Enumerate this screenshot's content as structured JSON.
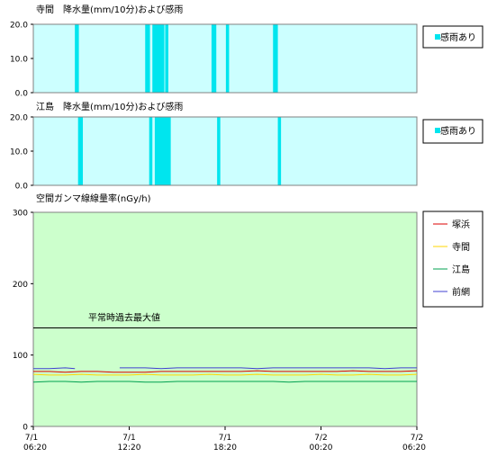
{
  "chart_data": [
    {
      "type": "bar",
      "title": "寺間　降水量(mm/10分)および感雨",
      "ylim": [
        0,
        20
      ],
      "yticks": [
        "0.0",
        "10.0",
        "20.0"
      ],
      "legend": {
        "label": "感雨あり",
        "placement": "right"
      },
      "colors": {
        "plot_bg": "#ccffff",
        "rain": "#00e5ee"
      },
      "rain_intervals_hours": [
        [
          2.6,
          2.85
        ],
        [
          7.0,
          7.3
        ],
        [
          7.45,
          8.2
        ],
        [
          8.25,
          8.45
        ],
        [
          11.15,
          11.45
        ],
        [
          12.05,
          12.25
        ],
        [
          15.0,
          15.3
        ]
      ]
    },
    {
      "type": "bar",
      "title": "江島　降水量(mm/10分)および感雨",
      "ylim": [
        0,
        20
      ],
      "yticks": [
        "0.0",
        "10.0",
        "20.0"
      ],
      "legend": {
        "label": "感雨あり",
        "placement": "right"
      },
      "colors": {
        "plot_bg": "#ccffff",
        "rain": "#00e5ee"
      },
      "rain_intervals_hours": [
        [
          2.8,
          3.1
        ],
        [
          7.25,
          7.45
        ],
        [
          7.6,
          8.6
        ],
        [
          11.5,
          11.7
        ],
        [
          15.3,
          15.5
        ]
      ]
    },
    {
      "type": "line",
      "title": "空間ガンマ線線量率(nGy/h)",
      "ylim": [
        0,
        300
      ],
      "yticks": [
        "0",
        "100",
        "200",
        "300"
      ],
      "x_ticks": [
        {
          "date": "7/1",
          "time": "06:20"
        },
        {
          "date": "7/1",
          "time": "12:20"
        },
        {
          "date": "7/1",
          "time": "18:20"
        },
        {
          "date": "7/2",
          "time": "00:20"
        },
        {
          "date": "7/2",
          "time": "06:20"
        }
      ],
      "x_range_hours": [
        0,
        24
      ],
      "reference_line": {
        "label": "平常時過去最大値",
        "value": 138
      },
      "colors": {
        "plot_bg": "#ccffcc"
      },
      "series": [
        {
          "name": "塚浜",
          "color": "#dd0000",
          "gaps_hours": [],
          "points": [
            [
              0,
              77
            ],
            [
              1,
              77
            ],
            [
              2,
              76
            ],
            [
              3,
              77
            ],
            [
              4,
              77
            ],
            [
              5,
              76
            ],
            [
              6,
              76
            ],
            [
              7,
              76
            ],
            [
              8,
              77
            ],
            [
              9,
              77
            ],
            [
              10,
              77
            ],
            [
              11,
              77
            ],
            [
              12,
              77
            ],
            [
              13,
              77
            ],
            [
              14,
              78
            ],
            [
              15,
              77
            ],
            [
              16,
              77
            ],
            [
              17,
              77
            ],
            [
              18,
              77
            ],
            [
              19,
              77
            ],
            [
              20,
              78
            ],
            [
              21,
              77
            ],
            [
              22,
              77
            ],
            [
              23,
              77
            ],
            [
              24,
              78
            ]
          ]
        },
        {
          "name": "寺間",
          "color": "#ffd700",
          "gaps_hours": [],
          "points": [
            [
              0,
              73
            ],
            [
              1,
              72
            ],
            [
              2,
              72
            ],
            [
              3,
              73
            ],
            [
              4,
              72
            ],
            [
              5,
              72
            ],
            [
              6,
              72
            ],
            [
              7,
              73
            ],
            [
              8,
              72
            ],
            [
              9,
              72
            ],
            [
              10,
              72
            ],
            [
              11,
              73
            ],
            [
              12,
              72
            ],
            [
              13,
              72
            ],
            [
              14,
              73
            ],
            [
              15,
              72
            ],
            [
              16,
              72
            ],
            [
              17,
              72
            ],
            [
              18,
              73
            ],
            [
              19,
              72
            ],
            [
              20,
              72
            ],
            [
              21,
              73
            ],
            [
              22,
              72
            ],
            [
              23,
              72
            ],
            [
              24,
              73
            ]
          ]
        },
        {
          "name": "江島",
          "color": "#00a050",
          "gaps_hours": [],
          "points": [
            [
              0,
              62
            ],
            [
              1,
              63
            ],
            [
              2,
              63
            ],
            [
              3,
              62
            ],
            [
              4,
              63
            ],
            [
              5,
              63
            ],
            [
              6,
              63
            ],
            [
              7,
              62
            ],
            [
              8,
              62
            ],
            [
              9,
              63
            ],
            [
              10,
              63
            ],
            [
              11,
              63
            ],
            [
              12,
              63
            ],
            [
              13,
              63
            ],
            [
              14,
              63
            ],
            [
              15,
              63
            ],
            [
              16,
              62
            ],
            [
              17,
              63
            ],
            [
              18,
              63
            ],
            [
              19,
              63
            ],
            [
              20,
              63
            ],
            [
              21,
              63
            ],
            [
              22,
              63
            ],
            [
              23,
              63
            ],
            [
              24,
              63
            ]
          ]
        },
        {
          "name": "前網",
          "color": "#4040d0",
          "gaps_hours": [
            [
              2.6,
              5.4
            ]
          ],
          "points": [
            [
              0,
              81
            ],
            [
              1,
              81
            ],
            [
              2,
              82
            ],
            [
              2.6,
              81
            ],
            [
              5.4,
              82
            ],
            [
              6,
              82
            ],
            [
              7,
              82
            ],
            [
              8,
              81
            ],
            [
              9,
              82
            ],
            [
              10,
              82
            ],
            [
              11,
              82
            ],
            [
              12,
              82
            ],
            [
              13,
              82
            ],
            [
              14,
              81
            ],
            [
              15,
              82
            ],
            [
              16,
              82
            ],
            [
              17,
              82
            ],
            [
              18,
              82
            ],
            [
              19,
              82
            ],
            [
              20,
              82
            ],
            [
              21,
              82
            ],
            [
              22,
              81
            ],
            [
              23,
              82
            ],
            [
              24,
              82
            ]
          ]
        }
      ]
    }
  ]
}
